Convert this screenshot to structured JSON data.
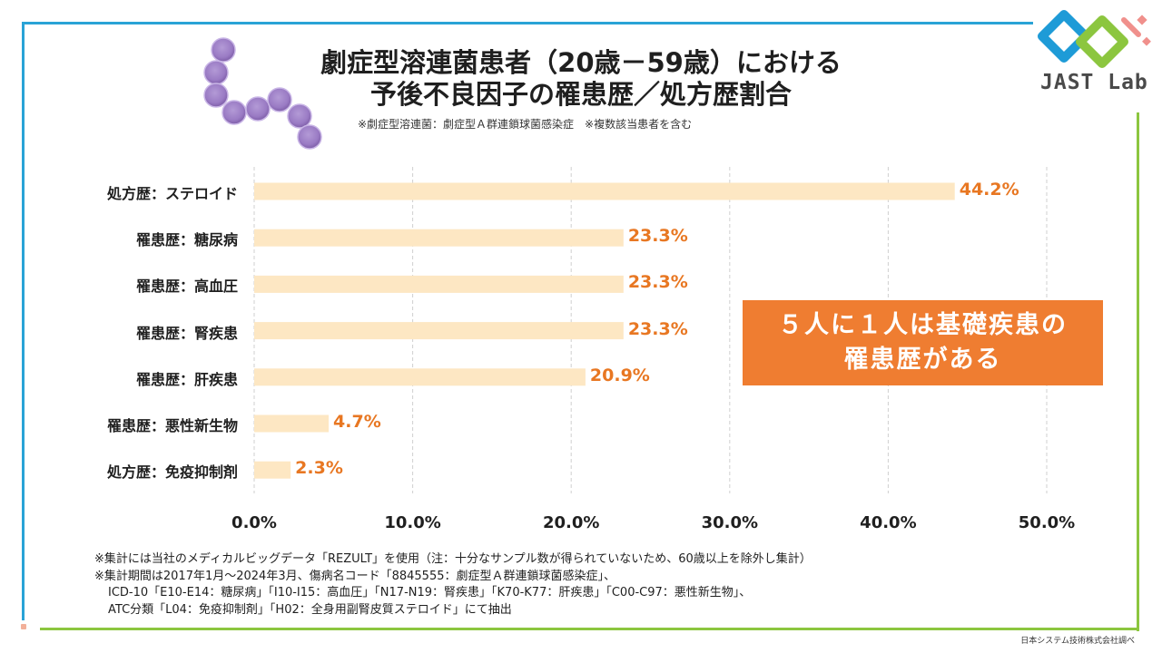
{
  "title": {
    "line1": "劇症型溶連菌患者（20歳－59歳）における",
    "line2": "予後不良因子の罹患歴／処方歴割合"
  },
  "subtitle": "※劇症型溶連菌：劇症型Ａ群連鎖球菌感染症　※複数該当患者を含む",
  "callout": {
    "line1": "５人に１人は基礎疾患の",
    "line2": "罹患歴がある"
  },
  "notes": [
    "※集計には当社のメディカルビッグデータ「REZULT」を使用（注：十分なサンプル数が得られていないため、60歳以上を除外し集計）",
    "※集計期間は2017年1月～2024年3月、傷病名コード「8845555：劇症型Ａ群連鎖球菌感染症」、",
    "ICD-10「E10-E14：糖尿病」「I10-I15：高血圧」「N17-N19：腎疾患」「K70-K77：肝疾患」「C00-C97：悪性新生物」、",
    "ATC分類「L04：免疫抑制剤」「H02：全身用副腎皮質ステロイド」にて抽出"
  ],
  "source": "日本システム技術株式会社調べ",
  "logo": {
    "text": "JAST Lab"
  },
  "colors": {
    "bar": "#fde7c3",
    "value_label": "#e87722",
    "callout": "#ef7d31",
    "frame_blue": "#29a3d6",
    "frame_green": "#8cc63f",
    "logo_blue": "#1e9bd7",
    "logo_green": "#8cc63f",
    "logo_pink": "#f0908c"
  },
  "chart_data": {
    "type": "bar",
    "orientation": "horizontal",
    "title": "劇症型溶連菌患者（20歳－59歳）における予後不良因子の罹患歴／処方歴割合",
    "categories": [
      "処方歴：ステロイド",
      "罹患歴：糖尿病",
      "罹患歴：高血圧",
      "罹患歴：腎疾患",
      "罹患歴：肝疾患",
      "罹患歴：悪性新生物",
      "処方歴：免疫抑制剤"
    ],
    "values": [
      44.2,
      23.3,
      23.3,
      23.3,
      20.9,
      4.7,
      2.3
    ],
    "value_labels": [
      "44.2%",
      "23.3%",
      "23.3%",
      "23.3%",
      "20.9%",
      "4.7%",
      "2.3%"
    ],
    "xlim": [
      0,
      50
    ],
    "ticks": [
      "0.0%",
      "10.0%",
      "20.0%",
      "30.0%",
      "40.0%",
      "50.0%"
    ],
    "xlabel": "",
    "ylabel": "",
    "grid": "vertical-dashed"
  }
}
